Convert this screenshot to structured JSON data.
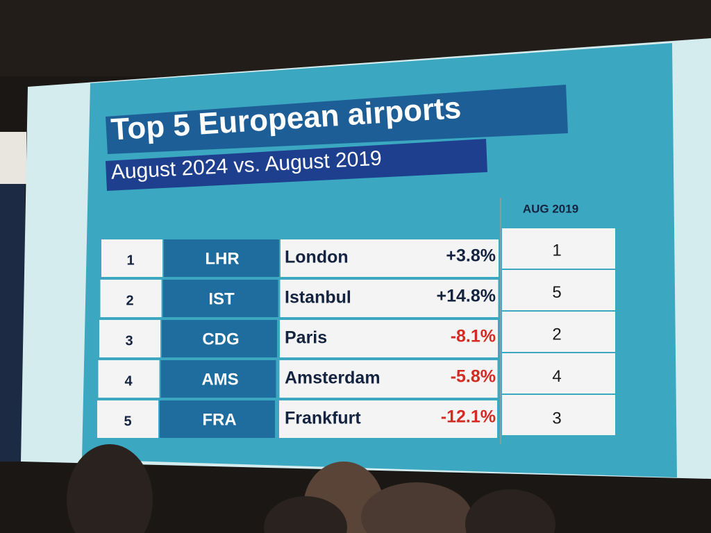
{
  "header": {
    "title": "Top 5 European airports",
    "subtitle": "August 2024 vs. August 2019"
  },
  "table": {
    "previous_column": "AUG 2019",
    "rows": [
      {
        "rank": 1,
        "code": "LHR",
        "city": "London",
        "change": "+3.8%",
        "previous_rank": 1
      },
      {
        "rank": 2,
        "code": "IST",
        "city": "Istanbul",
        "change": "+14.8%",
        "previous_rank": 5
      },
      {
        "rank": 3,
        "code": "CDG",
        "city": "Paris",
        "change": "-8.1%",
        "previous_rank": 2
      },
      {
        "rank": 4,
        "code": "AMS",
        "city": "Amsterdam",
        "change": "-5.8%",
        "previous_rank": 4
      },
      {
        "rank": 5,
        "code": "FRA",
        "city": "Frankfurt",
        "change": "-12.1%",
        "previous_rank": 3
      }
    ]
  }
}
